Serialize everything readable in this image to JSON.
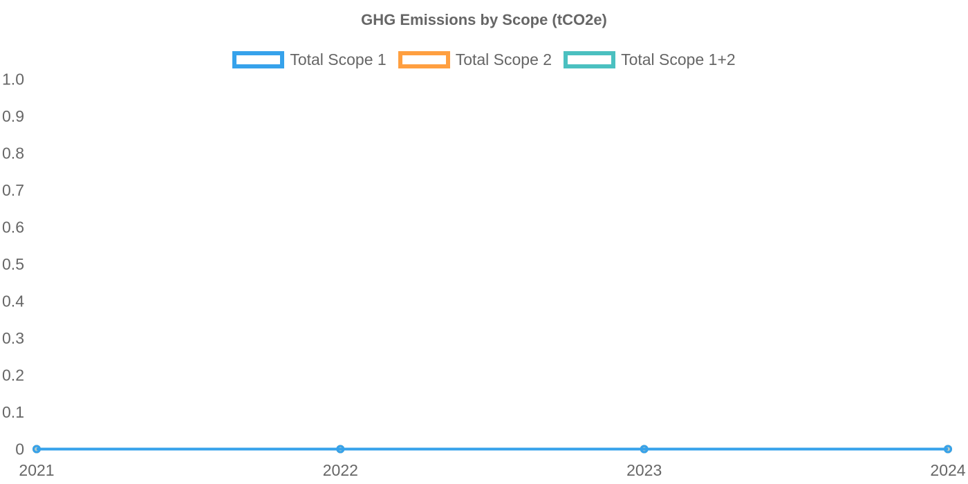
{
  "chart_data": {
    "type": "line",
    "title": "GHG Emissions by Scope (tCO2e)",
    "categories": [
      "2021",
      "2022",
      "2023",
      "2024"
    ],
    "series": [
      {
        "name": "Total Scope 1",
        "color": "#36A2EB",
        "point_fill": "rgba(54,162,235,0.25)",
        "values": [
          0,
          0,
          0,
          0
        ]
      },
      {
        "name": "Total Scope 2",
        "color": "#FF9F40",
        "point_fill": "rgba(255,159,64,0.25)",
        "values": [
          0,
          0,
          0,
          0
        ]
      },
      {
        "name": "Total Scope 1+2",
        "color": "#4BC0C0",
        "point_fill": "rgba(75,192,192,0.25)",
        "values": [
          0,
          0,
          0,
          0
        ]
      }
    ],
    "xlabel": "",
    "ylabel": "",
    "ylim": [
      0,
      1.0
    ],
    "ytick_labels": [
      "1.0",
      "0.9",
      "0.8",
      "0.7",
      "0.6",
      "0.5",
      "0.4",
      "0.3",
      "0.2",
      "0.1",
      "0"
    ],
    "ytick_values": [
      1.0,
      0.9,
      0.8,
      0.7,
      0.6,
      0.5,
      0.4,
      0.3,
      0.2,
      0.1,
      0
    ],
    "legend_position": "top",
    "grid": false,
    "text_color": "#666666",
    "background_color": "#ffffff"
  }
}
